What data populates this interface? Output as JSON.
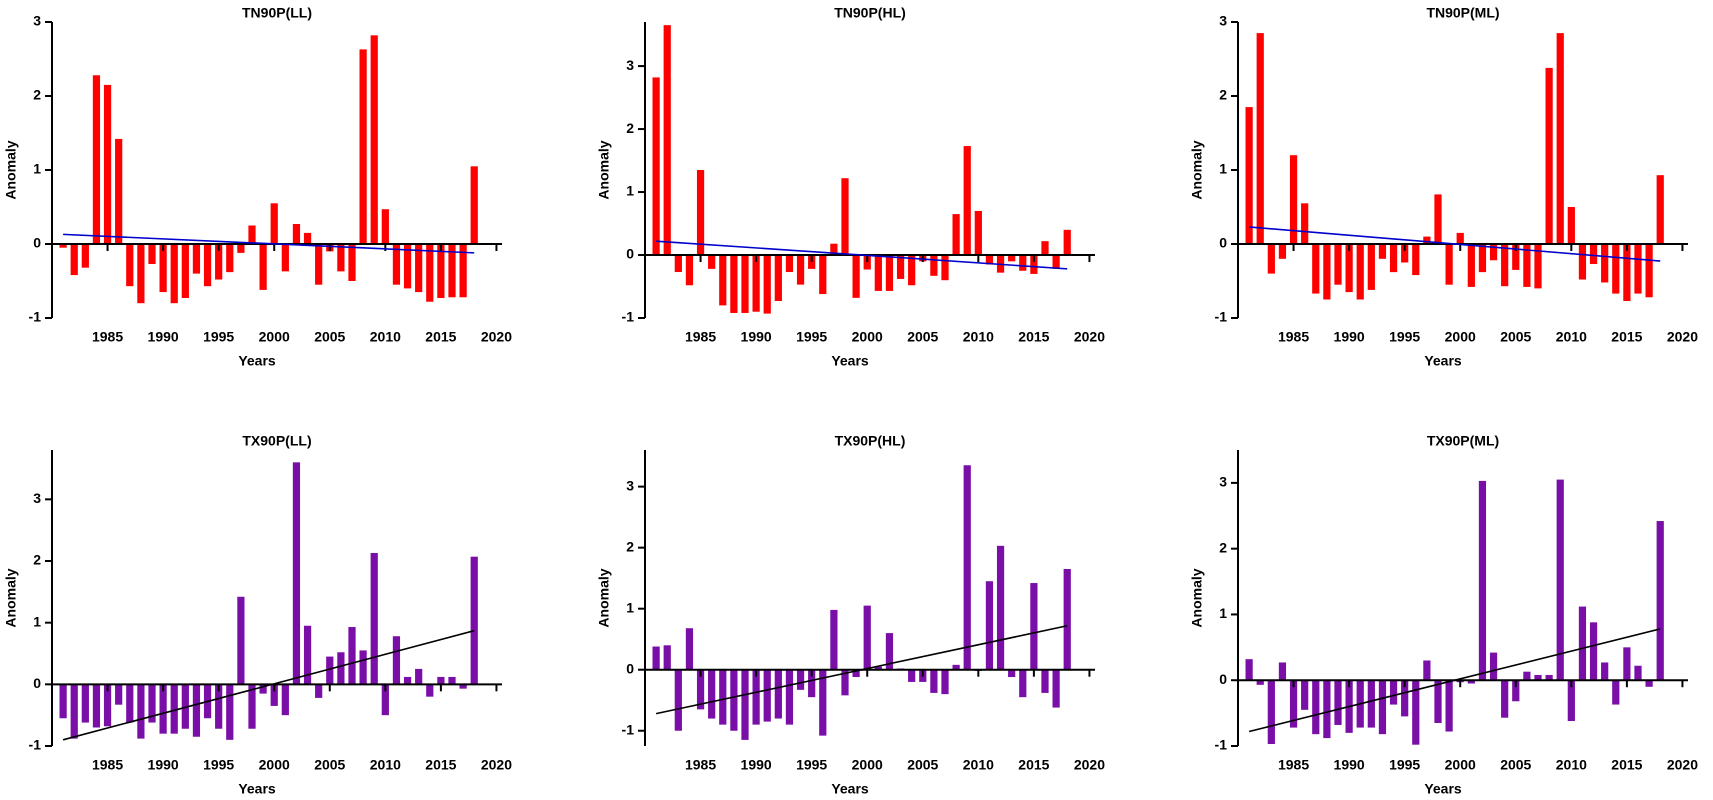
{
  "chart_data": [
    {
      "type": "bar",
      "title": "TN90P(LL)",
      "xlabel": "Years",
      "ylabel": "Anomaly",
      "color": "#ff0000",
      "x": [
        1981,
        1982,
        1983,
        1984,
        1985,
        1986,
        1987,
        1988,
        1989,
        1990,
        1991,
        1992,
        1993,
        1994,
        1995,
        1996,
        1997,
        1998,
        1999,
        2000,
        2001,
        2002,
        2003,
        2004,
        2005,
        2006,
        2007,
        2008,
        2009,
        2010,
        2011,
        2012,
        2013,
        2014,
        2015,
        2016,
        2017,
        2018
      ],
      "values": [
        -0.05,
        -0.42,
        -0.32,
        2.28,
        2.15,
        1.42,
        -0.57,
        -0.8,
        -0.27,
        -0.65,
        -0.8,
        -0.73,
        -0.4,
        -0.57,
        -0.48,
        -0.38,
        -0.12,
        0.25,
        -0.62,
        0.55,
        -0.37,
        0.27,
        0.15,
        -0.55,
        -0.1,
        -0.37,
        -0.5,
        2.63,
        2.82,
        0.47,
        -0.55,
        -0.6,
        -0.65,
        -0.78,
        -0.73,
        -0.72,
        -0.72,
        1.05
      ],
      "trend": {
        "x": [
          1981,
          2018
        ],
        "values": [
          0.13,
          -0.12
        ],
        "color": "#0000cc"
      },
      "xlim": [
        1980,
        2020.5
      ],
      "xticks": [
        1985,
        1990,
        1995,
        2000,
        2005,
        2010,
        2015,
        2020
      ],
      "ylim": [
        -1,
        3
      ],
      "yticks": [
        -1,
        0,
        1,
        2,
        3
      ]
    },
    {
      "type": "bar",
      "title": "TN90P(HL)",
      "xlabel": "Years",
      "ylabel": "Anomaly",
      "color": "#ff0000",
      "x": [
        1981,
        1982,
        1983,
        1984,
        1985,
        1986,
        1987,
        1988,
        1989,
        1990,
        1991,
        1992,
        1993,
        1994,
        1995,
        1996,
        1997,
        1998,
        1999,
        2000,
        2001,
        2002,
        2003,
        2004,
        2005,
        2006,
        2007,
        2008,
        2009,
        2010,
        2011,
        2012,
        2013,
        2014,
        2015,
        2016,
        2017,
        2018
      ],
      "values": [
        2.82,
        3.65,
        -0.27,
        -0.48,
        1.35,
        -0.22,
        -0.8,
        -0.92,
        -0.92,
        -0.9,
        -0.93,
        -0.73,
        -0.27,
        -0.47,
        -0.22,
        -0.62,
        0.18,
        1.22,
        -0.68,
        -0.23,
        -0.57,
        -0.57,
        -0.38,
        -0.48,
        -0.1,
        -0.33,
        -0.4,
        0.65,
        1.73,
        0.7,
        -0.15,
        -0.28,
        -0.1,
        -0.25,
        -0.3,
        0.22,
        -0.22,
        0.4
      ],
      "trend": {
        "x": [
          1981,
          2018
        ],
        "values": [
          0.22,
          -0.22
        ],
        "color": "#0000cc"
      },
      "xlim": [
        1980,
        2020.5
      ],
      "xticks": [
        1985,
        1990,
        1995,
        2000,
        2005,
        2010,
        2015,
        2020
      ],
      "ylim": [
        -1,
        3.7
      ],
      "yticks": [
        -1,
        0,
        1,
        2,
        3
      ]
    },
    {
      "type": "bar",
      "title": "TN90P(ML)",
      "xlabel": "Years",
      "ylabel": "Anomaly",
      "color": "#ff0000",
      "x": [
        1981,
        1982,
        1983,
        1984,
        1985,
        1986,
        1987,
        1988,
        1989,
        1990,
        1991,
        1992,
        1993,
        1994,
        1995,
        1996,
        1997,
        1998,
        1999,
        2000,
        2001,
        2002,
        2003,
        2004,
        2005,
        2006,
        2007,
        2008,
        2009,
        2010,
        2011,
        2012,
        2013,
        2014,
        2015,
        2016,
        2017,
        2018
      ],
      "values": [
        1.85,
        2.85,
        -0.4,
        -0.2,
        1.2,
        0.55,
        -0.67,
        -0.75,
        -0.55,
        -0.65,
        -0.75,
        -0.62,
        -0.2,
        -0.38,
        -0.25,
        -0.42,
        0.1,
        0.67,
        -0.55,
        0.15,
        -0.58,
        -0.38,
        -0.22,
        -0.57,
        -0.35,
        -0.58,
        -0.6,
        2.38,
        2.85,
        0.5,
        -0.48,
        -0.27,
        -0.52,
        -0.67,
        -0.77,
        -0.67,
        -0.72,
        0.93
      ],
      "trend": {
        "x": [
          1981,
          2018
        ],
        "values": [
          0.23,
          -0.23
        ],
        "color": "#0000cc"
      },
      "xlim": [
        1980,
        2020.5
      ],
      "xticks": [
        1985,
        1990,
        1995,
        2000,
        2005,
        2010,
        2015,
        2020
      ],
      "ylim": [
        -1,
        3
      ],
      "yticks": [
        -1,
        0,
        1,
        2,
        3
      ]
    },
    {
      "type": "bar",
      "title": "TX90P(LL)",
      "xlabel": "Years",
      "ylabel": "Anomaly",
      "color": "#7a0fa8",
      "x": [
        1981,
        1982,
        1983,
        1984,
        1985,
        1986,
        1987,
        1988,
        1989,
        1990,
        1991,
        1992,
        1993,
        1994,
        1995,
        1996,
        1997,
        1998,
        1999,
        2000,
        2001,
        2002,
        2003,
        2004,
        2005,
        2006,
        2007,
        2008,
        2009,
        2010,
        2011,
        2012,
        2013,
        2014,
        2015,
        2016,
        2017,
        2018
      ],
      "values": [
        -0.55,
        -0.88,
        -0.62,
        -0.7,
        -0.68,
        -0.33,
        -0.62,
        -0.88,
        -0.62,
        -0.8,
        -0.8,
        -0.72,
        -0.85,
        -0.55,
        -0.72,
        -0.9,
        1.42,
        -0.72,
        -0.15,
        -0.35,
        -0.5,
        3.6,
        0.95,
        -0.22,
        0.45,
        0.52,
        0.93,
        0.55,
        2.13,
        -0.5,
        0.78,
        0.12,
        0.25,
        -0.2,
        0.12,
        0.12,
        -0.07,
        2.07
      ],
      "trend": {
        "x": [
          1981,
          2018
        ],
        "values": [
          -0.9,
          0.87
        ],
        "color": "#000000"
      },
      "xlim": [
        1980,
        2020.5
      ],
      "xticks": [
        1985,
        1990,
        1995,
        2000,
        2005,
        2010,
        2015,
        2020
      ],
      "ylim": [
        -1,
        3.8
      ],
      "yticks": [
        -1,
        0,
        1,
        2,
        3
      ]
    },
    {
      "type": "bar",
      "title": "TX90P(HL)",
      "xlabel": "Years",
      "ylabel": "Anomaly",
      "color": "#7a0fa8",
      "x": [
        1981,
        1982,
        1983,
        1984,
        1985,
        1986,
        1987,
        1988,
        1989,
        1990,
        1991,
        1992,
        1993,
        1994,
        1995,
        1996,
        1997,
        1998,
        1999,
        2000,
        2001,
        2002,
        2003,
        2004,
        2005,
        2006,
        2007,
        2008,
        2009,
        2010,
        2011,
        2012,
        2013,
        2014,
        2015,
        2016,
        2017,
        2018
      ],
      "values": [
        0.38,
        0.4,
        -1.0,
        0.68,
        -0.65,
        -0.8,
        -0.9,
        -1.0,
        -1.15,
        -0.9,
        -0.85,
        -0.8,
        -0.9,
        -0.33,
        -0.45,
        -1.08,
        0.98,
        -0.42,
        -0.12,
        1.05,
        0.05,
        0.6,
        0.02,
        -0.2,
        -0.2,
        -0.38,
        -0.4,
        0.08,
        3.35,
        -0.02,
        1.45,
        2.03,
        -0.12,
        -0.45,
        1.42,
        -0.38,
        -0.62,
        1.65
      ],
      "trend": {
        "x": [
          1981,
          2018
        ],
        "values": [
          -0.72,
          0.72
        ],
        "color": "#000000"
      },
      "xlim": [
        1980,
        2020.5
      ],
      "xticks": [
        1985,
        1990,
        1995,
        2000,
        2005,
        2010,
        2015,
        2020
      ],
      "ylim": [
        -1.25,
        3.6
      ],
      "yticks": [
        -1,
        0,
        1,
        2,
        3
      ]
    },
    {
      "type": "bar",
      "title": "TX90P(ML)",
      "xlabel": "Years",
      "ylabel": "Anomaly",
      "color": "#7a0fa8",
      "x": [
        1981,
        1982,
        1983,
        1984,
        1985,
        1986,
        1987,
        1988,
        1989,
        1990,
        1991,
        1992,
        1993,
        1994,
        1995,
        1996,
        1997,
        1998,
        1999,
        2000,
        2001,
        2002,
        2003,
        2004,
        2005,
        2006,
        2007,
        2008,
        2009,
        2010,
        2011,
        2012,
        2013,
        2014,
        2015,
        2016,
        2017,
        2018
      ],
      "values": [
        0.32,
        -0.07,
        -0.97,
        0.27,
        -0.72,
        -0.45,
        -0.82,
        -0.88,
        -0.68,
        -0.8,
        -0.72,
        -0.72,
        -0.82,
        -0.37,
        -0.55,
        -0.98,
        0.3,
        -0.65,
        -0.78,
        -0.03,
        -0.05,
        3.03,
        0.42,
        -0.57,
        -0.32,
        0.13,
        0.08,
        0.08,
        3.05,
        -0.62,
        1.12,
        0.88,
        0.27,
        -0.37,
        0.5,
        0.22,
        -0.1,
        2.42
      ],
      "trend": {
        "x": [
          1981,
          2018
        ],
        "values": [
          -0.78,
          0.78
        ],
        "color": "#000000"
      },
      "xlim": [
        1980,
        2020.5
      ],
      "xticks": [
        1985,
        1990,
        1995,
        2000,
        2005,
        2010,
        2015,
        2020
      ],
      "ylim": [
        -1,
        3.5
      ],
      "yticks": [
        -1,
        0,
        1,
        2,
        3
      ]
    }
  ]
}
